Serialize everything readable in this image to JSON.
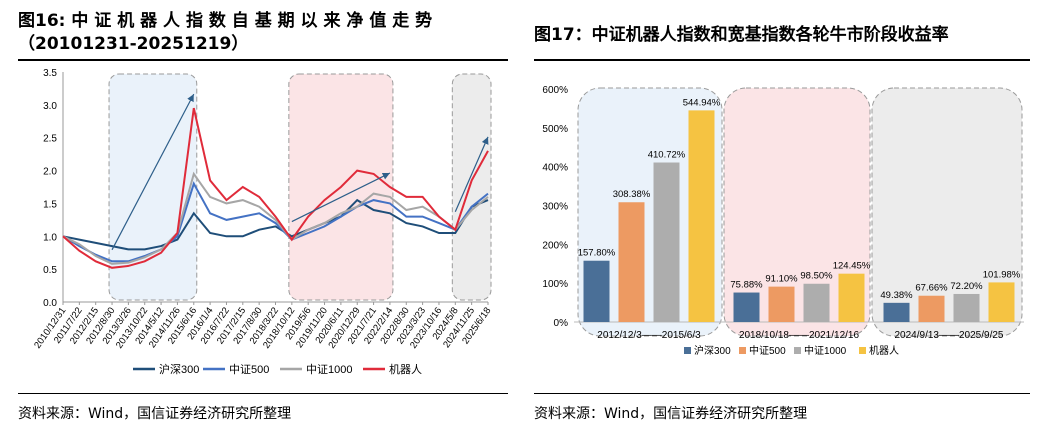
{
  "left": {
    "title_line1": "图16: 中 证 机 器 人 指 数 自 基 期 以 来 净 值 走 势",
    "title_line2": "（20101231-20251219）",
    "source": "资料来源：Wind，国信证券经济研究所整理"
  },
  "right": {
    "title": "图17：中证机器人指数和宽基指数各轮牛市阶段收益率",
    "source": "资料来源：Wind，国信证券经济研究所整理"
  },
  "colors": {
    "hs300": "#1f4e79",
    "zz500": "#4472c4",
    "zz1000": "#a6a6a6",
    "robot": "#e02b3a",
    "bar_hs300": "#4a6f97",
    "bar_zz500": "#ed9a62",
    "bar_zz1000": "#adadad",
    "bar_robot": "#f5c342",
    "zone1": "#eaf2fa",
    "zone2": "#fbe4e6",
    "zone3": "#ececec"
  },
  "chart_data": [
    {
      "type": "line",
      "y_ticks": [
        "0.0",
        "0.5",
        "1.0",
        "1.5",
        "2.0",
        "2.5",
        "3.0",
        "3.5"
      ],
      "ylim": [
        0,
        3.5
      ],
      "x_ticks": [
        "2010/12/31",
        "2011/7/22",
        "2012/2/15",
        "2012/8/30",
        "2013/3/26",
        "2013/10/22",
        "2014/5/12",
        "2014/11/26",
        "2015/6/16",
        "2016/1/4",
        "2016/7/22",
        "2017/2/15",
        "2017/8/30",
        "2018/3/22",
        "2018/10/12",
        "2019/5/6",
        "2019/11/20",
        "2020/6/11",
        "2020/12/29",
        "2021/7/21",
        "2022/2/14",
        "2022/8/30",
        "2023/3/23",
        "2023/10/16",
        "2024/5/8",
        "2024/11/25",
        "2025/6/18"
      ],
      "legend": [
        "沪深300",
        "中证500",
        "中证1000",
        "机器人"
      ],
      "series": [
        {
          "name": "沪深300",
          "values": [
            1.0,
            0.95,
            0.9,
            0.85,
            0.8,
            0.8,
            0.85,
            0.95,
            1.35,
            1.05,
            1.0,
            1.0,
            1.1,
            1.15,
            1.0,
            1.1,
            1.2,
            1.3,
            1.55,
            1.4,
            1.35,
            1.2,
            1.15,
            1.05,
            1.05,
            1.45,
            1.55
          ]
        },
        {
          "name": "中证500",
          "values": [
            1.0,
            0.85,
            0.72,
            0.62,
            0.62,
            0.7,
            0.8,
            1.0,
            1.8,
            1.35,
            1.25,
            1.3,
            1.35,
            1.2,
            0.95,
            1.05,
            1.15,
            1.3,
            1.45,
            1.55,
            1.5,
            1.3,
            1.3,
            1.2,
            1.1,
            1.45,
            1.65
          ]
        },
        {
          "name": "中证1000",
          "values": [
            1.0,
            0.88,
            0.7,
            0.58,
            0.6,
            0.68,
            0.8,
            1.05,
            1.95,
            1.6,
            1.5,
            1.55,
            1.45,
            1.25,
            0.95,
            1.1,
            1.2,
            1.35,
            1.45,
            1.65,
            1.6,
            1.4,
            1.45,
            1.3,
            1.1,
            1.4,
            1.6
          ]
        },
        {
          "name": "机器人",
          "values": [
            1.0,
            0.78,
            0.62,
            0.52,
            0.55,
            0.62,
            0.75,
            1.05,
            2.95,
            1.85,
            1.55,
            1.75,
            1.6,
            1.3,
            0.95,
            1.3,
            1.55,
            1.75,
            2.0,
            1.95,
            1.75,
            1.6,
            1.6,
            1.3,
            1.1,
            1.85,
            2.3
          ]
        }
      ],
      "zones": [
        [
          3,
          8
        ],
        [
          14,
          20
        ],
        [
          24,
          26
        ]
      ]
    },
    {
      "type": "bar",
      "y_ticks": [
        "0%",
        "100%",
        "200%",
        "300%",
        "400%",
        "500%",
        "600%"
      ],
      "ylim": [
        0,
        600
      ],
      "categories": [
        "2012/12/3——2015/6/3",
        "2018/10/18——2021/12/16",
        "2024/9/13——2025/9/25"
      ],
      "series": [
        {
          "name": "沪深300",
          "values": [
            157.8,
            75.88,
            49.38
          ],
          "labels": [
            "157.80%",
            "75.88%",
            "49.38%"
          ]
        },
        {
          "name": "中证500",
          "values": [
            308.38,
            91.1,
            67.66
          ],
          "labels": [
            "308.38%",
            "91.10%",
            "67.66%"
          ]
        },
        {
          "name": "中证1000",
          "values": [
            410.72,
            98.5,
            72.2
          ],
          "labels": [
            "410.72%",
            "98.50%",
            "72.20%"
          ]
        },
        {
          "name": "机器人",
          "values": [
            544.94,
            124.45,
            101.98
          ],
          "labels": [
            "544.94%",
            "124.45%",
            "101.98%"
          ]
        }
      ]
    }
  ]
}
